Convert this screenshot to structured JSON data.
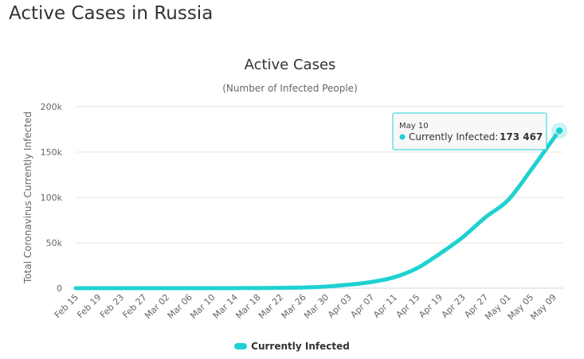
{
  "page": {
    "title": "Active Cases in Russia"
  },
  "chart_data": {
    "type": "area",
    "title": "Active Cases",
    "subtitle": "(Number of Infected People)",
    "xlabel": "",
    "ylabel": "Total Coronavirus Currently Infected",
    "x_tick_labels": [
      "Feb 15",
      "Feb 19",
      "Feb 23",
      "Feb 27",
      "Mar 02",
      "Mar 06",
      "Mar 10",
      "Mar 14",
      "Mar 18",
      "Mar 22",
      "Mar 26",
      "Mar 30",
      "Apr 03",
      "Apr 07",
      "Apr 11",
      "Apr 15",
      "Apr 19",
      "Apr 23",
      "Apr 27",
      "May 01",
      "May 05",
      "May 09"
    ],
    "y_tick_labels": [
      "0",
      "50k",
      "100k",
      "150k",
      "200k"
    ],
    "ylim": [
      0,
      200000
    ],
    "grid": true,
    "legend": "bottom-center",
    "series": [
      {
        "name": "Currently Infected",
        "color": "#1fd1d1",
        "points": [
          [
            "Feb 15",
            2
          ],
          [
            "Feb 19",
            2
          ],
          [
            "Feb 23",
            2
          ],
          [
            "Feb 27",
            2
          ],
          [
            "Mar 02",
            3
          ],
          [
            "Mar 06",
            10
          ],
          [
            "Mar 10",
            17
          ],
          [
            "Mar 14",
            45
          ],
          [
            "Mar 18",
            140
          ],
          [
            "Mar 22",
            350
          ],
          [
            "Mar 26",
            800
          ],
          [
            "Mar 30",
            1800
          ],
          [
            "Apr 03",
            3800
          ],
          [
            "Apr 07",
            6800
          ],
          [
            "Apr 11",
            12000
          ],
          [
            "Apr 15",
            22000
          ],
          [
            "Apr 19",
            38000
          ],
          [
            "Apr 23",
            56000
          ],
          [
            "Apr 27",
            78000
          ],
          [
            "May 01",
            97000
          ],
          [
            "May 05",
            130000
          ],
          [
            "May 09",
            165000
          ],
          [
            "May 10",
            173467
          ]
        ]
      }
    ]
  },
  "tooltip": {
    "date": "May 10",
    "series_label": "Currently Infected:",
    "value": "173 467"
  }
}
